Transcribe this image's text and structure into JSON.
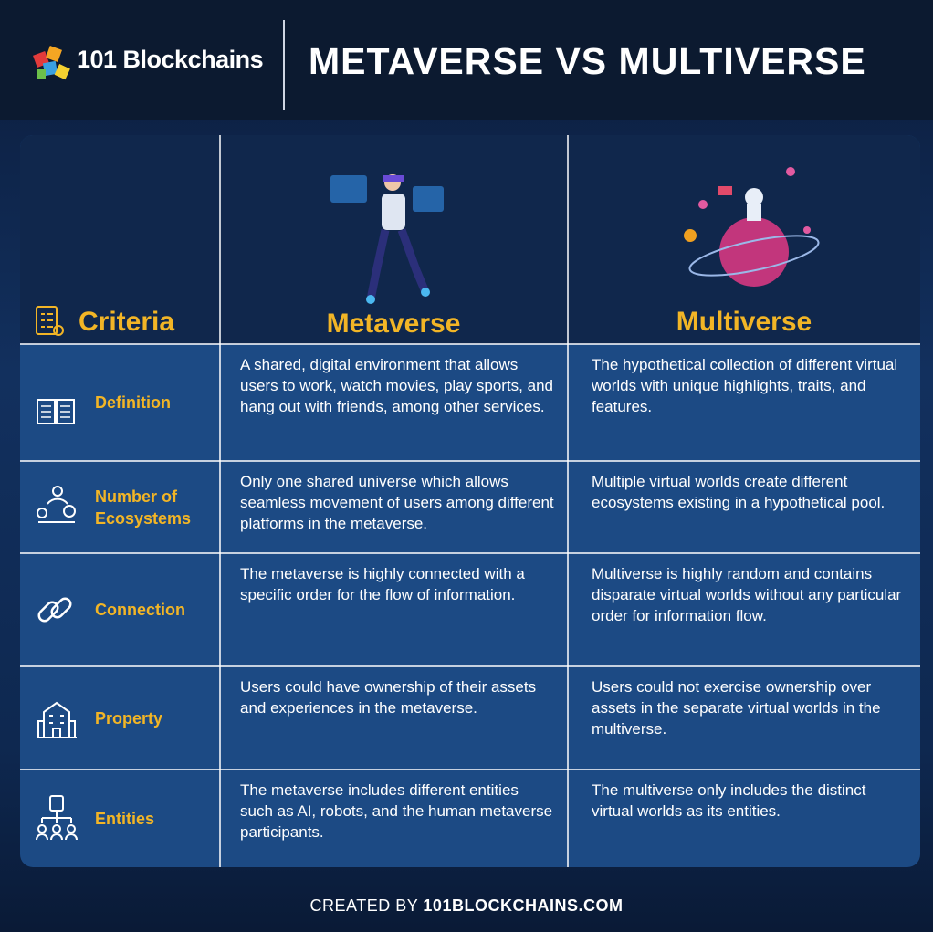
{
  "header": {
    "logo": "101 Blockchains",
    "title": "METAVERSE VS MULTIVERSE"
  },
  "table": {
    "headers": [
      "Criteria",
      "Metaverse",
      "Multiverse"
    ],
    "rows": [
      [
        "Definition",
        "A shared, digital environment that allows users to work, watch movies, play sports, and hang out with friends, among other services.",
        "The hypothetical collection of different virtual worlds with unique highlights, traits, and features."
      ],
      [
        "Number of Ecosystems",
        "Only one shared universe which allows seamless movement of users among different platforms in the metaverse.",
        "Multiple virtual worlds create different ecosystems existing in a hypothetical pool."
      ],
      [
        "Connection",
        "The metaverse is highly connected with a specific order for the flow of information.",
        "Multiverse is highly random and contains disparate virtual worlds without any particular order for information flow."
      ],
      [
        "Property",
        "Users could have ownership of their assets and experiences in the metaverse.",
        "Users could not exercise ownership over assets in the separate virtual worlds in the multiverse."
      ],
      [
        "Entities",
        "The metaverse includes different entities such as AI, robots, and the human metaverse participants.",
        "The multiverse only includes the distinct virtual worlds as its entities."
      ]
    ]
  },
  "footer": {
    "prefix": "CREATED BY",
    "site": "101BLOCKCHAINS.COM"
  }
}
